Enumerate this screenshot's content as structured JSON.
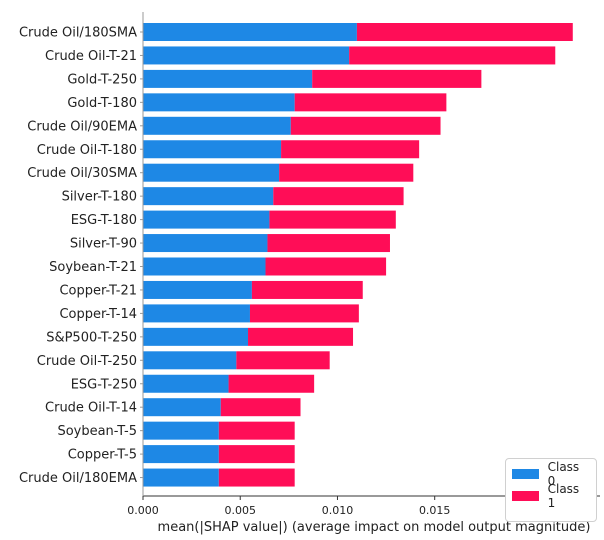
{
  "chart_data": {
    "type": "bar",
    "orientation": "horizontal",
    "stacked": true,
    "categories": [
      "Crude Oil/180SMA",
      "Crude Oil-T-21",
      "Gold-T-250",
      "Gold-T-180",
      "Crude Oil/90EMA",
      "Crude Oil-T-180",
      "Crude Oil/30SMA",
      "Silver-T-180",
      "ESG-T-180",
      "Silver-T-90",
      "Soybean-T-21",
      "Copper-T-21",
      "Copper-T-14",
      "S&P500-T-250",
      "Crude Oil-T-250",
      "ESG-T-250",
      "Crude Oil-T-14",
      "Soybean-T-5",
      "Copper-T-5",
      "Crude Oil/180EMA"
    ],
    "series": [
      {
        "name": "Class 0",
        "color": "#1e88e5",
        "values": [
          0.011,
          0.0106,
          0.0087,
          0.0078,
          0.0076,
          0.0071,
          0.007,
          0.0067,
          0.0065,
          0.0064,
          0.0063,
          0.0056,
          0.0055,
          0.0054,
          0.0048,
          0.0044,
          0.004,
          0.0039,
          0.0039,
          0.0039
        ]
      },
      {
        "name": "Class 1",
        "color": "#ff0d57",
        "values": [
          0.0111,
          0.0106,
          0.0087,
          0.0078,
          0.0077,
          0.0071,
          0.0069,
          0.0067,
          0.0065,
          0.0063,
          0.0062,
          0.0057,
          0.0056,
          0.0054,
          0.0048,
          0.0044,
          0.0041,
          0.0039,
          0.0039,
          0.0039
        ]
      }
    ],
    "xlabel": "mean(|SHAP value|) (average impact on model output magnitude)",
    "xlim": [
      0,
      0.0235
    ],
    "xticks": [
      "0.000",
      "0.005",
      "0.010",
      "0.015",
      "0.020"
    ],
    "xtick_values": [
      0,
      0.005,
      0.01,
      0.015,
      0.02
    ],
    "grid": false,
    "legend_position": "bottom-right"
  }
}
